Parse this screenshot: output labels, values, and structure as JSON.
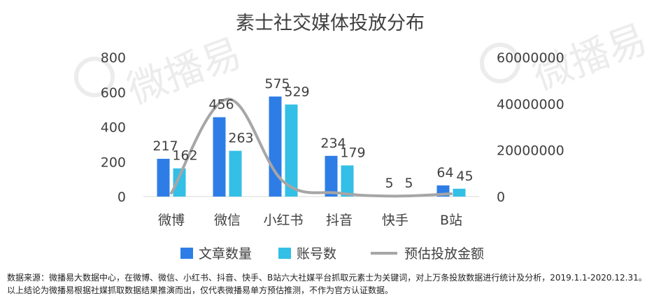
{
  "watermark": "微播易",
  "chart_data": {
    "type": "bar",
    "title": "素士社交媒体投放分布",
    "categories": [
      "微博",
      "微信",
      "小红书",
      "抖音",
      "快手",
      "B站"
    ],
    "series": [
      {
        "name": "文章数量",
        "type": "bar",
        "axis": "left",
        "color": "#2e7de6",
        "values": [
          217,
          456,
          575,
          234,
          5,
          64
        ],
        "labels": [
          "217",
          "456",
          "575",
          "234",
          "5",
          "64"
        ]
      },
      {
        "name": "账号数",
        "type": "bar",
        "axis": "left",
        "color": "#33bfe6",
        "values": [
          162,
          263,
          529,
          179,
          5,
          45
        ],
        "labels": [
          "162",
          "263",
          "529",
          "179",
          "5",
          "45"
        ]
      },
      {
        "name": "预估投放金额",
        "type": "line",
        "axis": "right",
        "color": "#a6a6a6",
        "values": [
          1500000,
          42000000,
          6500000,
          1500000,
          200000,
          1200000
        ]
      }
    ],
    "y_left": {
      "ylim": [
        0,
        800
      ],
      "ticks": [
        "0",
        "200",
        "400",
        "600",
        "800"
      ]
    },
    "y_right": {
      "ylim": [
        0,
        60000000
      ],
      "ticks": [
        "0",
        "20000000",
        "40000000",
        "60000000"
      ]
    },
    "legend": "bottom",
    "grid": false
  },
  "footnote": "数据来源：微播易大数据中心，在微博、微信、小红书、抖音、快手、B站六大社媒平台抓取元素士为关键词，对上万条投放数据进行统计及分析，2019.1.1-2020.12.31。以上结论为微播易根据社媒抓取数据结果推演而出，仅代表微播易单方预估推测，不作为官方认证数据。"
}
